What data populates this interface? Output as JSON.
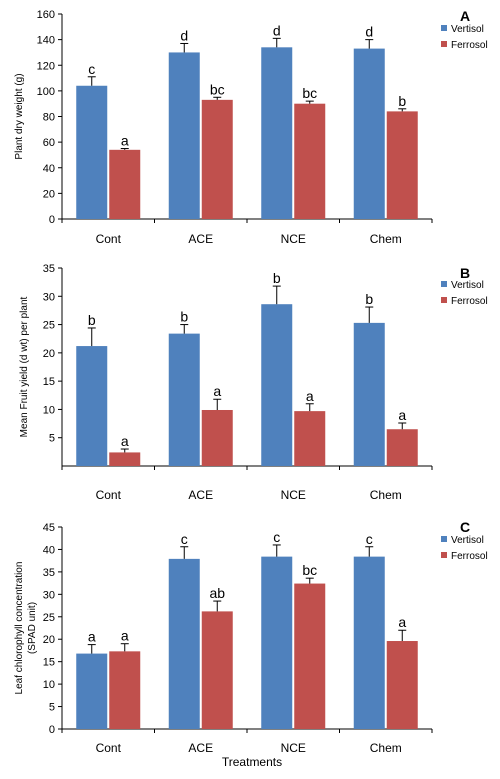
{
  "colors": {
    "vertisol": "#4f81bd",
    "ferrosol": "#c0504d"
  },
  "chart_data": [
    {
      "type": "bar",
      "panel": "A",
      "ylabel": "Plant dry weight (g)",
      "xlabel": "",
      "ylim": [
        0,
        160
      ],
      "yticks": [
        0,
        20,
        40,
        60,
        80,
        100,
        120,
        140,
        160
      ],
      "categories": [
        "Cont",
        "ACE",
        "NCE",
        "Chem"
      ],
      "legend": "top-right",
      "series": [
        {
          "name": "Vertisol",
          "values": [
            104,
            130,
            134,
            133
          ],
          "errors": [
            7,
            7,
            7,
            7
          ],
          "letters": [
            "c",
            "d",
            "d",
            "d"
          ]
        },
        {
          "name": "Ferrosol",
          "values": [
            54,
            93,
            90,
            84
          ],
          "errors": [
            1,
            2,
            2,
            2
          ],
          "letters": [
            "a",
            "bc",
            "bc",
            "b"
          ]
        }
      ]
    },
    {
      "type": "bar",
      "panel": "B",
      "ylabel": "Mean Fruit yield (d wt) per plant",
      "xlabel": "",
      "ylim": [
        0,
        35
      ],
      "yticks": [
        5,
        10,
        15,
        20,
        25,
        30,
        35
      ],
      "categories": [
        "Cont",
        "ACE",
        "NCE",
        "Chem"
      ],
      "legend": "top-right",
      "series": [
        {
          "name": "Vertisol",
          "values": [
            21.2,
            23.4,
            28.6,
            25.3
          ],
          "errors": [
            3.2,
            1.6,
            3.2,
            2.8
          ],
          "letters": [
            "b",
            "b",
            "b",
            "b"
          ]
        },
        {
          "name": "Ferrosol",
          "values": [
            2.4,
            9.9,
            9.7,
            6.5
          ],
          "errors": [
            0.6,
            1.9,
            1.3,
            1.1
          ],
          "letters": [
            "a",
            "a",
            "a",
            "a"
          ]
        }
      ]
    },
    {
      "type": "bar",
      "panel": "C",
      "ylabel": "Leaf chlorophyll concentration (SPAD unit)",
      "ylabel_lines": [
        "Leaf chlorophyll concentration",
        "(SPAD unit)"
      ],
      "xlabel": "Treatments",
      "ylim": [
        0,
        45
      ],
      "yticks": [
        0,
        5,
        10,
        15,
        20,
        25,
        30,
        35,
        40,
        45
      ],
      "categories": [
        "Cont",
        "ACE",
        "NCE",
        "Chem"
      ],
      "legend": "top-right",
      "series": [
        {
          "name": "Vertisol",
          "values": [
            16.8,
            37.9,
            38.4,
            38.4
          ],
          "errors": [
            2,
            2.7,
            2.6,
            2.2
          ],
          "letters": [
            "a",
            "c",
            "c",
            "c"
          ]
        },
        {
          "name": "Ferrosol",
          "values": [
            17.3,
            26.2,
            32.4,
            19.6
          ],
          "errors": [
            1.7,
            2.3,
            1.2,
            2.4
          ],
          "letters": [
            "a",
            "ab",
            "bc",
            "a"
          ]
        }
      ]
    }
  ]
}
